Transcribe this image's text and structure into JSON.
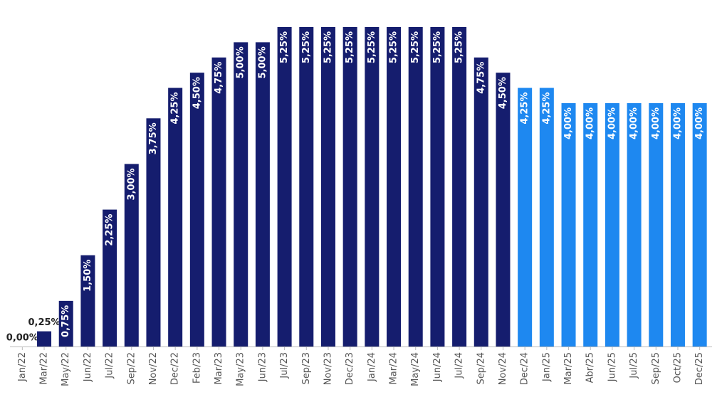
{
  "chart_data": {
    "type": "bar",
    "categories": [
      "Jan/22",
      "Mar/22",
      "May/22",
      "Jun/22",
      "Jul/22",
      "Sep/22",
      "Nov/22",
      "Dec/22",
      "Feb/23",
      "Mar/23",
      "May/23",
      "Jun/23",
      "Jul/23",
      "Sep/23",
      "Nov/23",
      "Dec/23",
      "Jan/24",
      "Mar/24",
      "May/24",
      "Jun/24",
      "Jul/24",
      "Sep/24",
      "Nov/24",
      "Dec/24",
      "Jan/25",
      "Mar/25",
      "Abr/25",
      "Jun/25",
      "Jul/25",
      "Sep/25",
      "Oct/25",
      "Dec/25"
    ],
    "values": [
      0,
      0.25,
      0.75,
      1.5,
      2.25,
      3,
      3.75,
      4.25,
      4.5,
      4.75,
      5,
      5,
      5.25,
      5.25,
      5.25,
      5.25,
      5.25,
      5.25,
      5.25,
      5.25,
      5.25,
      4.75,
      4.5,
      4.25,
      4.25,
      4,
      4,
      4,
      4,
      4,
      4,
      4
    ],
    "value_labels": [
      "0,00%",
      "0,25%",
      "0,75%",
      "1,50%",
      "2,25%",
      "3,00%",
      "3,75%",
      "4,25%",
      "4,50%",
      "4,75%",
      "5,00%",
      "5,00%",
      "5,25%",
      "5,25%",
      "5,25%",
      "5,25%",
      "5,25%",
      "5,25%",
      "5,25%",
      "5,25%",
      "5,25%",
      "4,75%",
      "4,50%",
      "4,25%",
      "4,25%",
      "4,00%",
      "4,00%",
      "4,00%",
      "4,00%",
      "4,00%",
      "4,00%",
      "4,00%"
    ],
    "colors": [
      "#151d6e",
      "#151d6e",
      "#151d6e",
      "#151d6e",
      "#151d6e",
      "#151d6e",
      "#151d6e",
      "#151d6e",
      "#151d6e",
      "#151d6e",
      "#151d6e",
      "#151d6e",
      "#151d6e",
      "#151d6e",
      "#151d6e",
      "#151d6e",
      "#151d6e",
      "#151d6e",
      "#151d6e",
      "#151d6e",
      "#151d6e",
      "#151d6e",
      "#151d6e",
      "#1e88f0",
      "#1e88f0",
      "#1e88f0",
      "#1e88f0",
      "#1e88f0",
      "#1e88f0",
      "#1e88f0",
      "#1e88f0",
      "#1e88f0"
    ],
    "ylim": [
      0,
      5.25
    ]
  }
}
